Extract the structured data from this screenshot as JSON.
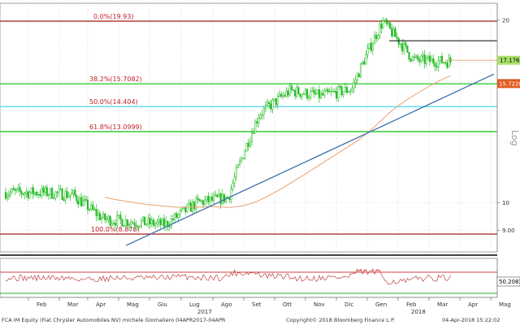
{
  "chart_data": {
    "type": "candlestick",
    "scale": "log",
    "y_axis_label": "Log",
    "ylim": [
      8.4,
      21.2
    ],
    "y_ticks": [
      "20",
      "10",
      "9.00"
    ],
    "x_ticks": [
      "Feb",
      "Mar",
      "Apr",
      "Mag",
      "Giu",
      "Lug",
      "Ago",
      "Set",
      "Ott",
      "Nov",
      "Dic",
      "Gen",
      "Feb",
      "Mar",
      "Apr",
      "Mag"
    ],
    "x_year_labels": [
      "2017",
      "2018"
    ],
    "price_series_approx": {
      "months": [
        "Feb 2017",
        "Mar 2017",
        "Apr 2017",
        "Mag 2017",
        "Giu 2017",
        "Lug 2017",
        "Ago 2017",
        "Set 2017",
        "Ott 2017",
        "Nov 2017",
        "Dic 2017",
        "Gen 2018",
        "Feb 2018",
        "Mar 2018"
      ],
      "close": [
        10.4,
        10.3,
        9.4,
        9.3,
        9.2,
        10.0,
        10.2,
        14.0,
        15.3,
        15.0,
        15.4,
        19.9,
        17.2,
        17.1
      ]
    },
    "last_price": "17.176",
    "moving_average_last": "15.7228",
    "rsi_last": "50.2083",
    "fibonacci_levels": [
      {
        "label": "0.0%(19.93)",
        "value": 19.93,
        "color": "#b03030"
      },
      {
        "label": "38.2%(15.7082)",
        "value": 15.7082,
        "color": "#33cc33"
      },
      {
        "label": "50.0%(14.404)",
        "value": 14.404,
        "color": "#66ddee"
      },
      {
        "label": "61.8%(13.0999)",
        "value": 13.0999,
        "color": "#33cc33"
      },
      {
        "label": "100.0%(8.878)",
        "value": 8.878,
        "color": "#b03030"
      }
    ],
    "trendline": {
      "from": {
        "date": "Mag 2017",
        "value": 8.5
      },
      "to": {
        "date": "Apr 2018",
        "value": 16.3
      }
    },
    "resistance_line": {
      "value": 18.5,
      "from": "Gen 2018",
      "to": "Apr 2018"
    }
  },
  "footer": {
    "left": "FCA IM Equity (Fiat Chrysler Automobiles NV) michele  Giornaliero 04APR2017-04APR",
    "center": "Copyright© 2018 Bloomberg Finance L.P.",
    "right": "04-Apr-2018 15:22:02"
  },
  "colors": {
    "candle": "#22bb22",
    "moving_average": "#e8a070",
    "trendline": "#3a6faa",
    "last_price_tag": "#a8e06a",
    "ma_tag": "#e05a20",
    "rsi_tag": "#ffffff",
    "rsi_fill": "#f4a8a8",
    "rsi_upper": "#d04040",
    "rsi_lower": "#33aa33"
  }
}
